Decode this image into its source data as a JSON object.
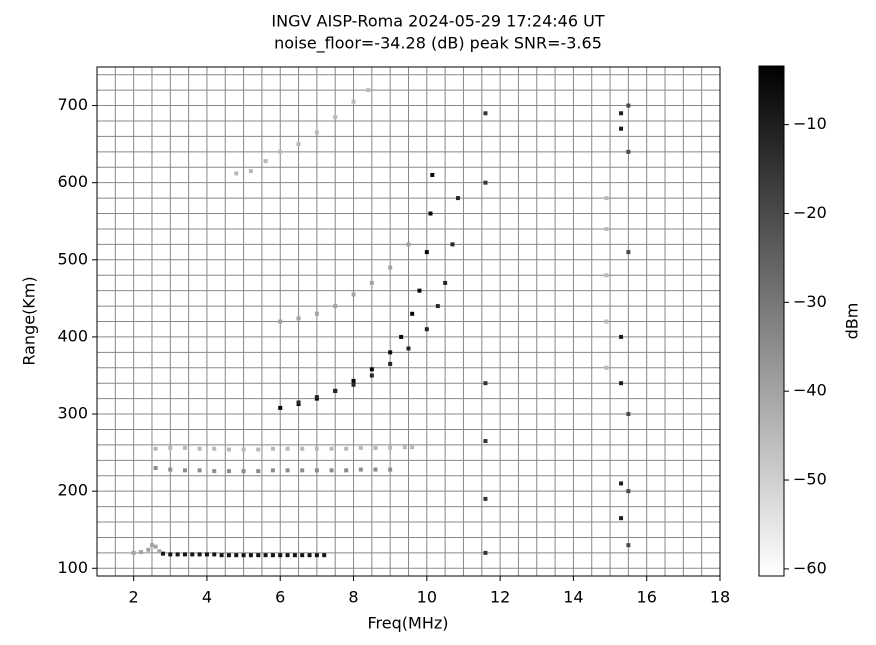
{
  "chart_data": {
    "type": "ionogram",
    "title": "INGV AISP-Roma 2024-05-29 17:24:46 UT",
    "subtitle": "noise_floor=-34.28 (dB) peak SNR=-3.65",
    "x_label": "Freq(MHz)",
    "y_label": "Range(Km)",
    "colorbar_label": "dBm",
    "xlim": [
      1,
      18
    ],
    "ylim": [
      90,
      750
    ],
    "clim": [
      -60.8,
      -3.4
    ],
    "xticks": [
      2,
      4,
      6,
      8,
      10,
      12,
      14,
      16,
      18
    ],
    "yticks": [
      100,
      200,
      300,
      400,
      500,
      600,
      700
    ],
    "cticks": [
      {
        "value": -10,
        "label": "−10"
      },
      {
        "value": -20,
        "label": "−20"
      },
      {
        "value": -30,
        "label": "−30"
      },
      {
        "value": -40,
        "label": "−40"
      },
      {
        "value": -50,
        "label": "−50"
      },
      {
        "value": -60,
        "label": "−60"
      }
    ],
    "grid": true,
    "xgrid": [
      1,
      1.5,
      2,
      2.5,
      3,
      3.5,
      4,
      4.5,
      5,
      5.5,
      6,
      6.5,
      7,
      7.5,
      8,
      8.5,
      9,
      9.5,
      10,
      10.5,
      11,
      11.5,
      12,
      12.5,
      13,
      13.5,
      14,
      14.5,
      15,
      15.5,
      16,
      16.5,
      17,
      17.5,
      18
    ],
    "ygrid": [
      100,
      120,
      140,
      160,
      180,
      200,
      220,
      240,
      260,
      280,
      300,
      320,
      340,
      360,
      380,
      400,
      420,
      440,
      460,
      480,
      500,
      520,
      540,
      560,
      580,
      600,
      620,
      640,
      660,
      680,
      700,
      720,
      740
    ],
    "series": [
      {
        "level": -8,
        "x": [
          2.8,
          3.0,
          3.2,
          3.4,
          3.6,
          3.8,
          4.0,
          4.2,
          4.4,
          4.6,
          4.8,
          5.0,
          5.2,
          5.4,
          5.6,
          5.8,
          6.0,
          6.2,
          6.4,
          6.6,
          6.8,
          7.0,
          7.2
        ],
        "y": [
          119,
          118,
          118,
          118,
          118,
          118,
          118,
          118,
          117,
          117,
          117,
          117,
          117,
          117,
          117,
          117,
          117,
          117,
          117,
          117,
          117,
          117,
          117
        ]
      },
      {
        "level": -40,
        "x": [
          2.0,
          2.2,
          2.4,
          2.5,
          2.6,
          2.7
        ],
        "y": [
          120,
          121,
          124,
          130,
          128,
          122
        ]
      },
      {
        "level": -35,
        "x": [
          2.6,
          3.0,
          3.4,
          3.8,
          4.2,
          4.6,
          5.0,
          5.4,
          5.8,
          6.2,
          6.6,
          7.0,
          7.4,
          7.8,
          8.2,
          8.6,
          9.0
        ],
        "y": [
          230,
          228,
          227,
          227,
          226,
          226,
          226,
          226,
          227,
          227,
          227,
          227,
          227,
          227,
          228,
          228,
          228
        ]
      },
      {
        "level": -45,
        "x": [
          2.6,
          3.0,
          3.4,
          3.8,
          4.2,
          4.6,
          5.0,
          5.4,
          5.8,
          6.2,
          6.6,
          7.0,
          7.4,
          7.8,
          8.2,
          8.6,
          9.0,
          9.4,
          9.6
        ],
        "y": [
          255,
          256,
          256,
          255,
          255,
          254,
          254,
          254,
          255,
          255,
          255,
          255,
          255,
          255,
          256,
          256,
          256,
          257,
          257
        ]
      },
      {
        "level": -5,
        "x": [
          6.0,
          6.5,
          7.0,
          7.5,
          8.0,
          8.5,
          9.0,
          9.3,
          9.6,
          9.8,
          10.0,
          10.1,
          10.15
        ],
        "y": [
          308,
          313,
          320,
          330,
          343,
          358,
          380,
          400,
          430,
          460,
          510,
          560,
          610
        ]
      },
      {
        "level": -12,
        "x": [
          6.5,
          7.0,
          7.5,
          8.0,
          8.5,
          9.0,
          9.5,
          10.0,
          10.3,
          10.5,
          10.7,
          10.85
        ],
        "y": [
          315,
          322,
          330,
          338,
          350,
          365,
          385,
          410,
          440,
          470,
          520,
          580
        ]
      },
      {
        "level": -40,
        "x": [
          6.0,
          6.5,
          7.0,
          7.5,
          8.0,
          8.5,
          9.0,
          9.5
        ],
        "y": [
          420,
          424,
          430,
          440,
          455,
          470,
          490,
          520
        ]
      },
      {
        "level": -45,
        "x": [
          4.8,
          5.2,
          5.6,
          6.0,
          6.5,
          7.0,
          7.5,
          8.0,
          8.4
        ],
        "y": [
          612,
          615,
          628,
          640,
          650,
          665,
          685,
          705,
          720
        ]
      },
      {
        "level": -15,
        "x": [
          11.6,
          11.6,
          11.6,
          11.6,
          11.6,
          11.6
        ],
        "y": [
          120,
          190,
          265,
          340,
          600,
          690
        ]
      },
      {
        "level": -10,
        "x": [
          15.3,
          15.3,
          15.3,
          15.3,
          15.3,
          15.3
        ],
        "y": [
          165,
          210,
          340,
          400,
          670,
          690
        ]
      },
      {
        "level": -20,
        "x": [
          15.5,
          15.5,
          15.5,
          15.5,
          15.5,
          15.5
        ],
        "y": [
          130,
          200,
          300,
          510,
          640,
          700
        ]
      },
      {
        "level": -45,
        "x": [
          14.9,
          14.9,
          14.9,
          14.9,
          14.9
        ],
        "y": [
          360,
          420,
          480,
          540,
          580
        ]
      }
    ]
  }
}
